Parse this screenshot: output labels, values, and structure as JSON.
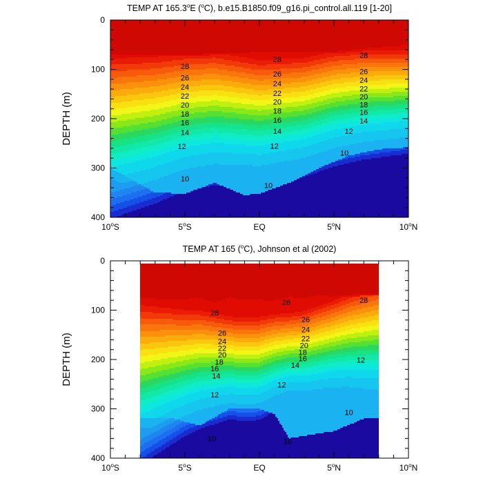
{
  "chart_data": [
    {
      "type": "heatmap",
      "subtype": "filled-contour-section",
      "title": "TEMP AT 165.3°E (°C), b.e15.B1850.f09_g16.pi_control.all.119 [1-20]",
      "title_parts": {
        "prefix": "TEMP AT 165.3",
        "superscript": "o",
        "after_sup": "E (",
        "unit_super": "o",
        "suffix": "C), b.e15.B1850.f09_g16.pi_control.all.119 [1-20]"
      },
      "xlabel": "",
      "ylabel": "DEPTH (m)",
      "xlim": [
        -10,
        10
      ],
      "ylim": [
        0,
        400
      ],
      "y_inverted": true,
      "x_ticks": [
        {
          "value": -10,
          "label": "10",
          "sup": "o",
          "suffix": "S"
        },
        {
          "value": -5,
          "label": "5",
          "sup": "o",
          "suffix": "S"
        },
        {
          "value": 0,
          "label": "EQ",
          "sup": "",
          "suffix": ""
        },
        {
          "value": 5,
          "label": "5",
          "sup": "o",
          "suffix": "N"
        },
        {
          "value": 10,
          "label": "10",
          "sup": "o",
          "suffix": "N"
        }
      ],
      "y_ticks": [
        0,
        100,
        200,
        300,
        400
      ],
      "data_extent_x": [
        -10,
        10
      ],
      "contour_interval": 1,
      "thermocline_center_depth": [
        [
          -10,
          206
        ],
        [
          -7,
          192
        ],
        [
          -5,
          178
        ],
        [
          -3,
          172
        ],
        [
          0,
          182
        ],
        [
          3,
          172
        ],
        [
          5,
          156
        ],
        [
          7,
          148
        ],
        [
          10,
          144
        ]
      ],
      "isotherm_spacing": [
        [
          -10,
          14
        ],
        [
          -5,
          12
        ],
        [
          0,
          11
        ],
        [
          5,
          10
        ],
        [
          10,
          9
        ]
      ],
      "deep_layer": [
        [
          -10,
          300
        ],
        [
          -7,
          350
        ],
        [
          -5,
          352
        ],
        [
          -3,
          330
        ],
        [
          -1,
          355
        ],
        [
          0,
          352
        ],
        [
          2,
          330
        ],
        [
          4,
          300
        ],
        [
          6,
          275
        ],
        [
          8,
          262
        ],
        [
          10,
          258
        ]
      ],
      "warm_pool_depth_29": [
        [
          -10,
          72
        ],
        [
          -5,
          72
        ],
        [
          0,
          70
        ],
        [
          5,
          68
        ],
        [
          10,
          55
        ]
      ],
      "warm_pool_depth_30": [
        [
          -10,
          35
        ],
        [
          -8,
          38
        ],
        [
          -5,
          37
        ],
        [
          -2,
          18
        ],
        [
          0,
          2
        ],
        [
          2,
          8
        ],
        [
          4,
          18
        ],
        [
          6,
          0
        ],
        [
          8,
          -10
        ],
        [
          10,
          -10
        ]
      ],
      "contour_labels": [
        {
          "value": "28",
          "x": -5.0,
          "y": 94
        },
        {
          "value": "26",
          "x": -5.0,
          "y": 117
        },
        {
          "value": "24",
          "x": -5.0,
          "y": 136
        },
        {
          "value": "22",
          "x": -5.0,
          "y": 154
        },
        {
          "value": "20",
          "x": -5.0,
          "y": 172
        },
        {
          "value": "18",
          "x": -5.0,
          "y": 190
        },
        {
          "value": "16",
          "x": -5.0,
          "y": 208
        },
        {
          "value": "14",
          "x": -5.0,
          "y": 228
        },
        {
          "value": "12",
          "x": -5.2,
          "y": 256
        },
        {
          "value": "10",
          "x": -5.0,
          "y": 322
        },
        {
          "value": "28",
          "x": 1.2,
          "y": 80
        },
        {
          "value": "26",
          "x": 1.2,
          "y": 109
        },
        {
          "value": "24",
          "x": 1.2,
          "y": 129
        },
        {
          "value": "22",
          "x": 1.2,
          "y": 148
        },
        {
          "value": "20",
          "x": 1.2,
          "y": 166
        },
        {
          "value": "18",
          "x": 1.2,
          "y": 184
        },
        {
          "value": "16",
          "x": 1.2,
          "y": 203
        },
        {
          "value": "14",
          "x": 1.2,
          "y": 225
        },
        {
          "value": "12",
          "x": 1.0,
          "y": 255
        },
        {
          "value": "10",
          "x": 0.6,
          "y": 335
        },
        {
          "value": "28",
          "x": 7.0,
          "y": 71
        },
        {
          "value": "26",
          "x": 7.0,
          "y": 104
        },
        {
          "value": "24",
          "x": 7.0,
          "y": 122
        },
        {
          "value": "22",
          "x": 7.0,
          "y": 139
        },
        {
          "value": "20",
          "x": 7.0,
          "y": 155
        },
        {
          "value": "18",
          "x": 7.0,
          "y": 171
        },
        {
          "value": "16",
          "x": 7.0,
          "y": 187
        },
        {
          "value": "14",
          "x": 7.0,
          "y": 204
        },
        {
          "value": "12",
          "x": 6.0,
          "y": 225
        },
        {
          "value": "10",
          "x": 5.7,
          "y": 269
        }
      ]
    },
    {
      "type": "heatmap",
      "subtype": "filled-contour-section",
      "title": "TEMP AT 165 (°C), Johnson et al (2002)",
      "title_parts": {
        "prefix": "TEMP AT 165 (",
        "unit_super": "o",
        "suffix": "C), Johnson et al (2002)"
      },
      "xlabel": "",
      "ylabel": "DEPTH (m)",
      "xlim": [
        -10,
        10
      ],
      "ylim": [
        0,
        400
      ],
      "y_inverted": true,
      "x_ticks": [
        {
          "value": -10,
          "label": "10",
          "sup": "o",
          "suffix": "S"
        },
        {
          "value": -5,
          "label": "5",
          "sup": "o",
          "suffix": "S"
        },
        {
          "value": 0,
          "label": "EQ",
          "sup": "",
          "suffix": ""
        },
        {
          "value": 5,
          "label": "5",
          "sup": "o",
          "suffix": "N"
        },
        {
          "value": 10,
          "label": "10",
          "sup": "o",
          "suffix": "N"
        }
      ],
      "y_ticks": [
        0,
        100,
        200,
        300,
        400
      ],
      "data_extent_x": [
        -8,
        8
      ],
      "data_extent_y": [
        5,
        400
      ],
      "contour_interval": 1,
      "thermocline_center_depth": [
        [
          -8,
          218
        ],
        [
          -6,
          206
        ],
        [
          -4,
          195
        ],
        [
          -2,
          195
        ],
        [
          -1,
          198
        ],
        [
          0,
          196
        ],
        [
          1,
          186
        ],
        [
          2,
          180
        ],
        [
          3,
          178
        ],
        [
          4,
          170
        ],
        [
          6,
          156
        ],
        [
          8,
          148
        ]
      ],
      "isotherm_spacing": [
        [
          -8,
          14
        ],
        [
          -5,
          11
        ],
        [
          -2,
          9
        ],
        [
          0,
          9
        ],
        [
          2,
          8
        ],
        [
          5,
          9
        ],
        [
          8,
          11
        ]
      ],
      "deep_layer": [
        [
          -8,
          318
        ],
        [
          -6,
          318
        ],
        [
          -4,
          334
        ],
        [
          -2,
          300
        ],
        [
          0,
          300
        ],
        [
          1,
          310
        ],
        [
          2,
          360
        ],
        [
          3,
          355
        ],
        [
          5,
          345
        ],
        [
          7,
          320
        ],
        [
          8,
          320
        ]
      ],
      "warm_pool_depth_29": [
        [
          -8,
          78
        ],
        [
          -6,
          80
        ],
        [
          -4,
          78
        ],
        [
          -3,
          88
        ],
        [
          -2,
          76
        ],
        [
          -1,
          82
        ],
        [
          0,
          80
        ],
        [
          1,
          84
        ],
        [
          2,
          76
        ],
        [
          3,
          80
        ],
        [
          4,
          72
        ],
        [
          5,
          76
        ],
        [
          6,
          72
        ],
        [
          8,
          70
        ]
      ],
      "warm_pool_depth_30": [
        [
          -8,
          40
        ],
        [
          -7,
          50
        ],
        [
          -6,
          46
        ],
        [
          -5,
          60
        ],
        [
          -4,
          38
        ],
        [
          -3,
          42
        ],
        [
          -2,
          40
        ],
        [
          -1.5,
          55
        ],
        [
          -1,
          40
        ],
        [
          0,
          70
        ],
        [
          0.5,
          60
        ],
        [
          1,
          30
        ],
        [
          1.5,
          40
        ],
        [
          2,
          35
        ],
        [
          3,
          30
        ],
        [
          4,
          35
        ],
        [
          5,
          30
        ],
        [
          6,
          25
        ],
        [
          7,
          30
        ],
        [
          8,
          25
        ]
      ],
      "contour_labels": [
        {
          "value": "28",
          "x": -3.0,
          "y": 105
        },
        {
          "value": "26",
          "x": -2.5,
          "y": 146
        },
        {
          "value": "24",
          "x": -2.5,
          "y": 163
        },
        {
          "value": "22",
          "x": -2.5,
          "y": 177
        },
        {
          "value": "20",
          "x": -2.5,
          "y": 190
        },
        {
          "value": "18",
          "x": -2.7,
          "y": 205
        },
        {
          "value": "16",
          "x": -3.0,
          "y": 218
        },
        {
          "value": "14",
          "x": -2.9,
          "y": 233
        },
        {
          "value": "12",
          "x": -3.0,
          "y": 271
        },
        {
          "value": "10",
          "x": -3.2,
          "y": 360
        },
        {
          "value": "28",
          "x": 1.8,
          "y": 84
        },
        {
          "value": "26",
          "x": 3.1,
          "y": 119
        },
        {
          "value": "24",
          "x": 3.1,
          "y": 139
        },
        {
          "value": "22",
          "x": 3.1,
          "y": 157
        },
        {
          "value": "20",
          "x": 3.0,
          "y": 171
        },
        {
          "value": "18",
          "x": 2.9,
          "y": 185
        },
        {
          "value": "16",
          "x": 2.9,
          "y": 198
        },
        {
          "value": "14",
          "x": 2.4,
          "y": 211
        },
        {
          "value": "12",
          "x": 1.5,
          "y": 251
        },
        {
          "value": "10",
          "x": 1.9,
          "y": 366
        },
        {
          "value": "28",
          "x": 7.0,
          "y": 80
        },
        {
          "value": "12",
          "x": 6.8,
          "y": 201
        },
        {
          "value": "10",
          "x": 6.0,
          "y": 307
        }
      ]
    }
  ]
}
